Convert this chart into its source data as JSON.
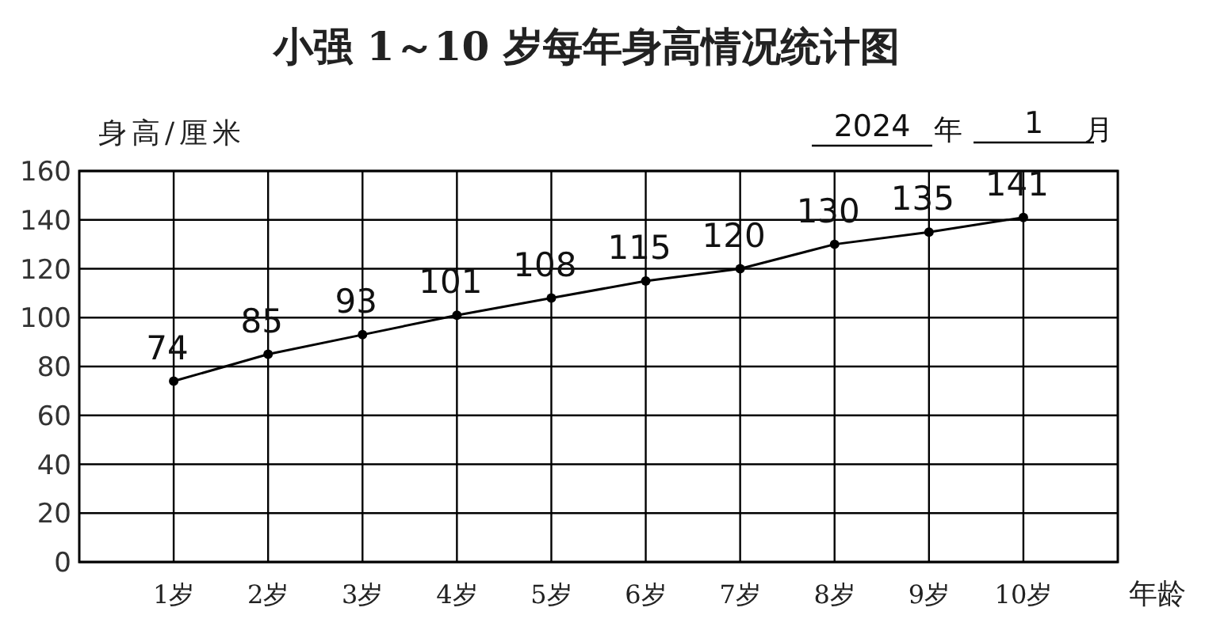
{
  "chart_data": {
    "type": "line",
    "title": "小强 1～10 岁每年身高情况统计图",
    "ylabel": "身高/厘米",
    "xlabel": "年龄",
    "annotations": [
      "2024",
      "年",
      "1",
      "月"
    ],
    "categories": [
      "1岁",
      "2岁",
      "3岁",
      "4岁",
      "5岁",
      "6岁",
      "7岁",
      "8岁",
      "9岁",
      "10岁"
    ],
    "series": [
      {
        "color": "#000000",
        "values": [
          74,
          85,
          93,
          101,
          108,
          115,
          120,
          130,
          135,
          141
        ]
      }
    ],
    "ylim": [
      0,
      160
    ],
    "yticks": [
      0,
      20,
      40,
      60,
      80,
      100,
      120,
      140,
      160
    ],
    "grid": true,
    "marker": "circle",
    "line_style": "solid",
    "data_labels": true
  }
}
